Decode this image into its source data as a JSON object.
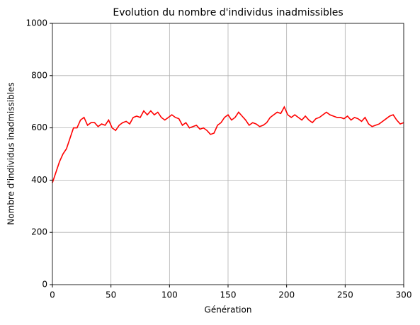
{
  "chart_data": {
    "type": "line",
    "title": "Evolution du nombre d'individus inadmissibles",
    "xlabel": "Génération",
    "ylabel": "Nombre d'individus inadmissibles",
    "xlim": [
      0,
      300
    ],
    "xticks": [
      0,
      50,
      100,
      150,
      200,
      250,
      300
    ],
    "ylim": [
      0,
      1000
    ],
    "yticks": [
      0,
      200,
      400,
      600,
      800,
      1000
    ],
    "grid": true,
    "x": [
      0,
      3,
      6,
      9,
      12,
      15,
      18,
      21,
      24,
      27,
      30,
      33,
      36,
      39,
      42,
      45,
      48,
      51,
      54,
      57,
      60,
      63,
      66,
      69,
      72,
      75,
      78,
      81,
      84,
      87,
      90,
      93,
      96,
      99,
      102,
      105,
      108,
      111,
      114,
      117,
      120,
      123,
      126,
      129,
      132,
      135,
      138,
      141,
      144,
      147,
      150,
      153,
      156,
      159,
      162,
      165,
      168,
      171,
      174,
      177,
      180,
      183,
      186,
      189,
      192,
      195,
      198,
      201,
      204,
      207,
      210,
      213,
      216,
      219,
      222,
      225,
      228,
      231,
      234,
      237,
      240,
      243,
      246,
      249,
      252,
      255,
      258,
      261,
      264,
      267,
      270,
      273,
      276,
      279,
      282,
      285,
      288,
      291,
      294,
      297,
      300
    ],
    "series": [
      {
        "name": "inadmissibles",
        "color": "#ff0000",
        "values": [
          390,
          430,
          470,
          500,
          520,
          560,
          600,
          600,
          630,
          640,
          610,
          620,
          620,
          605,
          615,
          610,
          630,
          600,
          590,
          610,
          620,
          625,
          615,
          640,
          645,
          640,
          665,
          650,
          665,
          650,
          660,
          640,
          630,
          640,
          650,
          640,
          635,
          610,
          620,
          600,
          605,
          610,
          595,
          600,
          590,
          575,
          580,
          610,
          620,
          640,
          650,
          630,
          640,
          660,
          645,
          630,
          610,
          620,
          615,
          605,
          610,
          620,
          640,
          650,
          660,
          655,
          680,
          650,
          640,
          650,
          640,
          630,
          645,
          630,
          620,
          635,
          640,
          650,
          660,
          650,
          645,
          640,
          640,
          635,
          645,
          630,
          640,
          635,
          625,
          640,
          615,
          605,
          610,
          615,
          625,
          635,
          645,
          650,
          630,
          615,
          620
        ]
      }
    ]
  }
}
